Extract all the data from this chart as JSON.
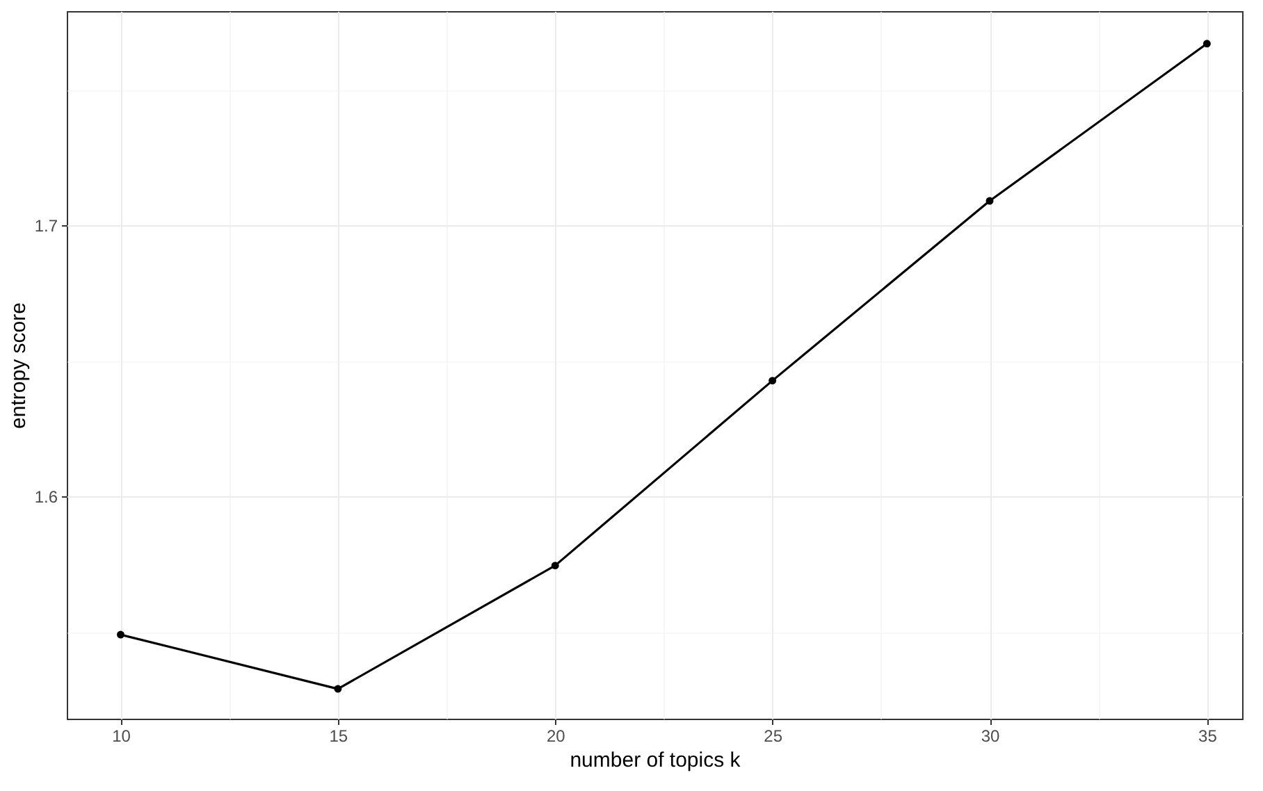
{
  "chart_data": {
    "type": "line",
    "xlabel": "number of topics k",
    "ylabel": "entropy score",
    "x": [
      10,
      15,
      20,
      25,
      30,
      35
    ],
    "series": [
      {
        "color": "#000000",
        "values": [
          1.549,
          1.529,
          1.5745,
          1.6427,
          1.709,
          1.767
        ]
      }
    ],
    "xlim": [
      8.76,
      35.81
    ],
    "ylim": [
      1.518,
      1.779
    ],
    "xticks": [
      10,
      {
        "value": 12.5,
        "label": null
      },
      15,
      {
        "value": 17.5,
        "label": null
      },
      20,
      {
        "value": 22.5,
        "label": null
      },
      25,
      {
        "value": 27.5,
        "label": null
      },
      30,
      {
        "value": 32.5,
        "label": null
      },
      35
    ],
    "yticks": [
      {
        "value": 1.55,
        "label": null
      },
      1.6,
      {
        "value": 1.65,
        "label": null
      },
      1.7,
      {
        "value": 1.75,
        "label": null
      }
    ],
    "grid": true,
    "marker": "circle",
    "line_style": "solid"
  }
}
